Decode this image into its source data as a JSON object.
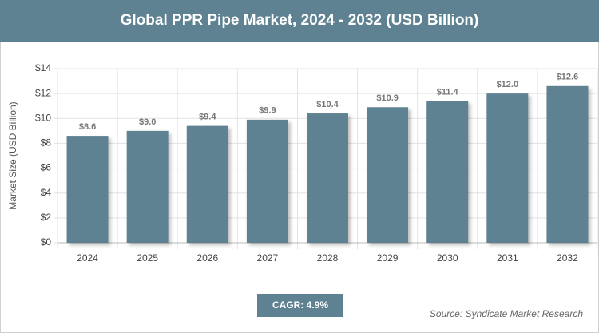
{
  "chart_data": {
    "type": "bar",
    "title": "Global PPR Pipe Market, 2024 - 2032 (USD Billion)",
    "y_label": "Market Size (USD Billion)",
    "categories": [
      "2024",
      "2025",
      "2026",
      "2027",
      "2028",
      "2029",
      "2030",
      "2031",
      "2032"
    ],
    "values": [
      8.6,
      9.0,
      9.4,
      9.9,
      10.4,
      10.9,
      11.4,
      12.0,
      12.6
    ],
    "value_labels": [
      "$8.6",
      "$9.0",
      "$9.4",
      "$9.9",
      "$10.4",
      "$10.9",
      "$11.4",
      "$12.0",
      "$12.6"
    ],
    "color": "#5f8292",
    "ylim": [
      0,
      14
    ],
    "yticks": [
      {
        "value": 0,
        "label": "$0"
      },
      {
        "value": 2,
        "label": "$2"
      },
      {
        "value": 4,
        "label": "$4"
      },
      {
        "value": 6,
        "label": "$6"
      },
      {
        "value": 8,
        "label": "$8"
      },
      {
        "value": 10,
        "label": "$10"
      },
      {
        "value": 12,
        "label": "$12"
      },
      {
        "value": 14,
        "label": "$14"
      }
    ],
    "grid": true,
    "cagr": "CAGR: 4.9%",
    "source": "Source: Syndicate Market Research"
  }
}
